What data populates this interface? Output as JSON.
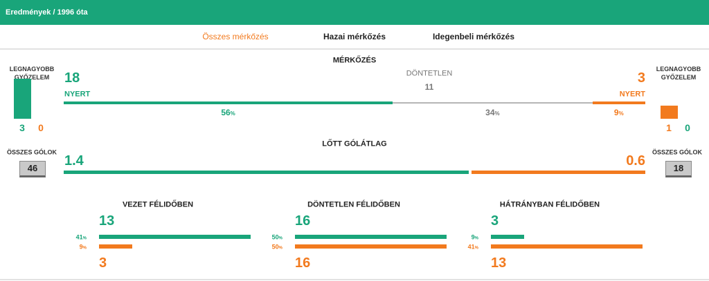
{
  "header": {
    "title": "Eredmények / 1996 óta"
  },
  "tabs": [
    "Összes mérkőzés",
    "Hazai mérkőzés",
    "Idegenbeli mérkőzés"
  ],
  "active_tab": 0,
  "colors": {
    "home": "#19a57a",
    "away": "#f27a1e",
    "draw": "#b5b5b5",
    "muted": "#777777"
  },
  "percent_sign": "%",
  "biggest_win": {
    "label": "LEGNAGYOBB GYŐZELEM",
    "home": {
      "scored": 3,
      "conceded": 0
    },
    "away": {
      "scored": 1,
      "conceded": 0
    }
  },
  "matches": {
    "title": "MÉRKŐZÉS",
    "home_wins": 18,
    "home_label": "NYERT",
    "draws_label": "DÖNTETLEN",
    "draws": 11,
    "away_wins": 3,
    "away_label": "NYERT",
    "home_pct": 56,
    "draw_pct": 34,
    "away_pct": 9
  },
  "goal_average": {
    "title": "LŐTT GÓLÁTLAG",
    "home": 1.4,
    "away": 0.6
  },
  "total_goals": {
    "label": "ÖSSZES GÓLOK",
    "home": 46,
    "away": 18
  },
  "halftime": [
    {
      "title": "VEZET FÉLIDŐBEN",
      "home": 13,
      "away": 3,
      "home_pct": 41,
      "away_pct": 9
    },
    {
      "title": "DÖNTETLEN FÉLIDŐBEN",
      "home": 16,
      "away": 16,
      "home_pct": 50,
      "away_pct": 50
    },
    {
      "title": "HÁTRÁNYBAN FÉLIDŐBEN",
      "home": 3,
      "away": 13,
      "home_pct": 9,
      "away_pct": 41
    }
  ]
}
